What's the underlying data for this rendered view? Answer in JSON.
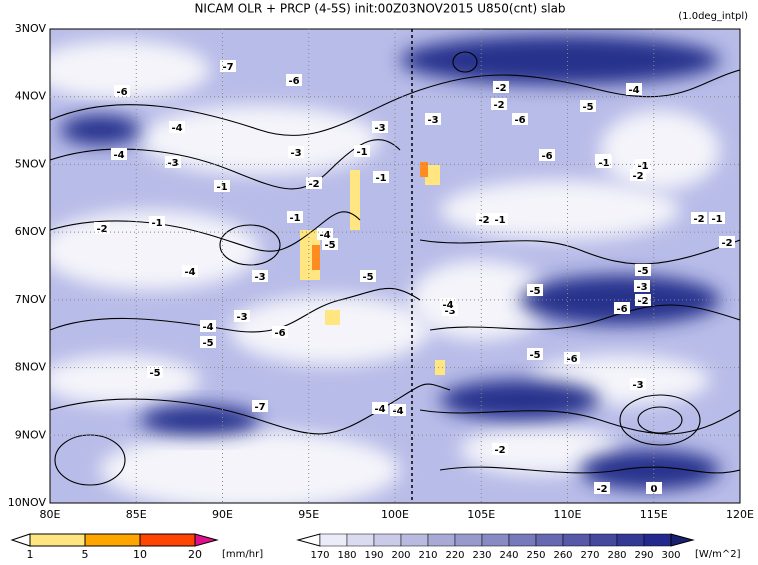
{
  "title": "NICAM  OLR + PRCP (4-5S) init:00Z03NOV2015 U850(cnt) slab",
  "note": "(1.0deg_intpl)",
  "y_axis": {
    "labels": [
      "3NOV",
      "4NOV",
      "5NOV",
      "6NOV",
      "7NOV",
      "8NOV",
      "9NOV",
      "10NOV"
    ]
  },
  "x_axis": {
    "labels": [
      "80E",
      "85E",
      "90E",
      "95E",
      "100E",
      "105E",
      "110E",
      "115E",
      "120E"
    ]
  },
  "precip_colorbar": {
    "labels": [
      "1",
      "5",
      "10",
      "20"
    ],
    "unit": "[mm/hr]"
  },
  "olr_colorbar": {
    "labels": [
      "170",
      "180",
      "190",
      "200",
      "210",
      "220",
      "230",
      "240",
      "250",
      "260",
      "270",
      "280",
      "290",
      "300"
    ],
    "unit": "[W/m^2]"
  },
  "contour_labels": [
    -7,
    -6,
    -6,
    -2,
    -3,
    -2,
    -6,
    -4,
    -3,
    -4,
    -5,
    -4,
    -3,
    -3,
    -1,
    -3,
    -2,
    -1,
    -6,
    -2,
    -2,
    -1,
    -2,
    -1,
    -1,
    -2,
    -1,
    -2,
    -1,
    -4,
    -5,
    -2,
    -4,
    -5,
    -3,
    -6,
    -3,
    -5,
    -4,
    -5,
    -6,
    -3,
    -3,
    -4,
    -5,
    -5,
    -6,
    -7,
    -5,
    -4,
    -4,
    -2,
    -3,
    -1,
    -1,
    0,
    -2,
    -2
  ]
}
